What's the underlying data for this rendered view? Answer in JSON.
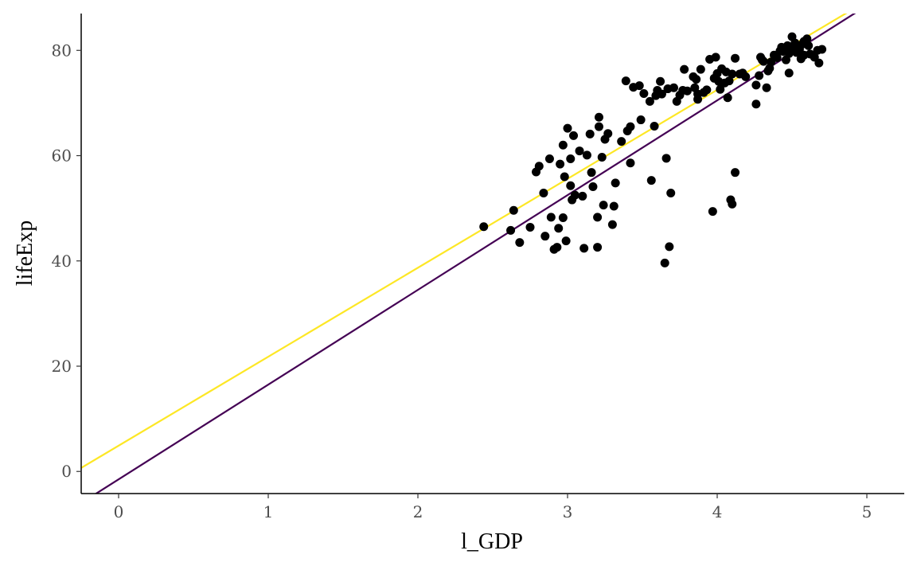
{
  "chart_data": {
    "type": "scatter",
    "title": "",
    "xlabel": "l_GDP",
    "ylabel": "lifeExp",
    "xlim": [
      -0.25,
      5.25
    ],
    "ylim": [
      -4.2,
      87
    ],
    "x_ticks": [
      0,
      1,
      2,
      3,
      4,
      5
    ],
    "y_ticks": [
      0,
      20,
      40,
      60,
      80
    ],
    "x_tick_labels": [
      "0",
      "1",
      "2",
      "3",
      "4",
      "5"
    ],
    "y_tick_labels": [
      "0",
      "20",
      "40",
      "60",
      "80"
    ],
    "grid": false,
    "legend": "none",
    "point_color": "#000000",
    "lines": [
      {
        "intercept": -1.5,
        "slope": 18.0,
        "color": "#440154"
      },
      {
        "intercept": 4.9,
        "slope": 16.9,
        "color": "#fde725"
      }
    ],
    "points": [
      [
        2.44,
        46.5
      ],
      [
        2.62,
        45.8
      ],
      [
        2.64,
        49.6
      ],
      [
        2.68,
        43.5
      ],
      [
        2.75,
        46.4
      ],
      [
        2.79,
        56.9
      ],
      [
        2.81,
        58.0
      ],
      [
        2.84,
        52.9
      ],
      [
        2.85,
        44.7
      ],
      [
        2.88,
        59.4
      ],
      [
        2.89,
        48.3
      ],
      [
        2.91,
        42.2
      ],
      [
        2.93,
        42.6
      ],
      [
        2.94,
        46.2
      ],
      [
        2.95,
        58.4
      ],
      [
        2.97,
        48.2
      ],
      [
        2.97,
        62.0
      ],
      [
        2.98,
        56.0
      ],
      [
        2.99,
        43.8
      ],
      [
        3.0,
        65.2
      ],
      [
        3.02,
        54.3
      ],
      [
        3.02,
        59.4
      ],
      [
        3.03,
        51.6
      ],
      [
        3.04,
        63.8
      ],
      [
        3.05,
        52.5
      ],
      [
        3.08,
        60.9
      ],
      [
        3.1,
        52.3
      ],
      [
        3.11,
        42.4
      ],
      [
        3.13,
        60.1
      ],
      [
        3.15,
        64.1
      ],
      [
        3.16,
        56.8
      ],
      [
        3.17,
        54.1
      ],
      [
        3.2,
        42.6
      ],
      [
        3.2,
        48.3
      ],
      [
        3.21,
        65.5
      ],
      [
        3.21,
        67.3
      ],
      [
        3.23,
        59.7
      ],
      [
        3.24,
        50.6
      ],
      [
        3.25,
        63.1
      ],
      [
        3.27,
        64.2
      ],
      [
        3.3,
        46.9
      ],
      [
        3.31,
        50.4
      ],
      [
        3.32,
        54.8
      ],
      [
        3.36,
        62.7
      ],
      [
        3.39,
        74.2
      ],
      [
        3.4,
        64.7
      ],
      [
        3.42,
        65.5
      ],
      [
        3.42,
        58.6
      ],
      [
        3.44,
        73.0
      ],
      [
        3.48,
        73.3
      ],
      [
        3.49,
        66.8
      ],
      [
        3.51,
        71.8
      ],
      [
        3.55,
        70.3
      ],
      [
        3.56,
        55.3
      ],
      [
        3.58,
        65.6
      ],
      [
        3.59,
        71.4
      ],
      [
        3.6,
        72.4
      ],
      [
        3.62,
        74.1
      ],
      [
        3.63,
        71.7
      ],
      [
        3.65,
        39.6
      ],
      [
        3.66,
        59.5
      ],
      [
        3.67,
        72.7
      ],
      [
        3.68,
        42.7
      ],
      [
        3.69,
        52.9
      ],
      [
        3.71,
        72.9
      ],
      [
        3.73,
        70.3
      ],
      [
        3.75,
        71.5
      ],
      [
        3.77,
        72.4
      ],
      [
        3.78,
        76.4
      ],
      [
        3.8,
        72.3
      ],
      [
        3.84,
        75.0
      ],
      [
        3.85,
        72.9
      ],
      [
        3.86,
        74.5
      ],
      [
        3.87,
        70.7
      ],
      [
        3.87,
        71.7
      ],
      [
        3.89,
        76.4
      ],
      [
        3.91,
        72.0
      ],
      [
        3.93,
        72.5
      ],
      [
        3.95,
        78.3
      ],
      [
        3.97,
        49.4
      ],
      [
        3.98,
        74.7
      ],
      [
        3.99,
        78.7
      ],
      [
        4.0,
        75.6
      ],
      [
        4.01,
        74.1
      ],
      [
        4.02,
        72.6
      ],
      [
        4.03,
        76.5
      ],
      [
        4.05,
        73.8
      ],
      [
        4.06,
        75.9
      ],
      [
        4.07,
        71.0
      ],
      [
        4.08,
        74.2
      ],
      [
        4.09,
        51.6
      ],
      [
        4.1,
        75.5
      ],
      [
        4.1,
        50.8
      ],
      [
        4.12,
        56.8
      ],
      [
        4.12,
        78.5
      ],
      [
        4.15,
        75.5
      ],
      [
        4.17,
        75.7
      ],
      [
        4.19,
        75.0
      ],
      [
        4.26,
        73.4
      ],
      [
        4.26,
        69.8
      ],
      [
        4.28,
        75.2
      ],
      [
        4.29,
        78.7
      ],
      [
        4.3,
        78.2
      ],
      [
        4.31,
        77.9
      ],
      [
        4.33,
        72.9
      ],
      [
        4.34,
        76.1
      ],
      [
        4.35,
        76.6
      ],
      [
        4.36,
        77.8
      ],
      [
        4.38,
        79.1
      ],
      [
        4.4,
        78.6
      ],
      [
        4.42,
        79.9
      ],
      [
        4.43,
        80.6
      ],
      [
        4.45,
        80.2
      ],
      [
        4.46,
        78.2
      ],
      [
        4.47,
        80.9
      ],
      [
        4.48,
        79.4
      ],
      [
        4.48,
        75.7
      ],
      [
        4.5,
        80.5
      ],
      [
        4.5,
        82.6
      ],
      [
        4.52,
        81.4
      ],
      [
        4.53,
        79.6
      ],
      [
        4.55,
        80.2
      ],
      [
        4.56,
        78.4
      ],
      [
        4.57,
        81.2
      ],
      [
        4.58,
        79.1
      ],
      [
        4.6,
        82.2
      ],
      [
        4.61,
        80.9
      ],
      [
        4.62,
        79.3
      ],
      [
        4.65,
        78.7
      ],
      [
        4.67,
        80.0
      ],
      [
        4.68,
        77.6
      ],
      [
        4.7,
        80.2
      ],
      [
        4.44,
        79.8
      ],
      [
        4.52,
        80.9
      ],
      [
        4.58,
        81.7
      ]
    ]
  }
}
